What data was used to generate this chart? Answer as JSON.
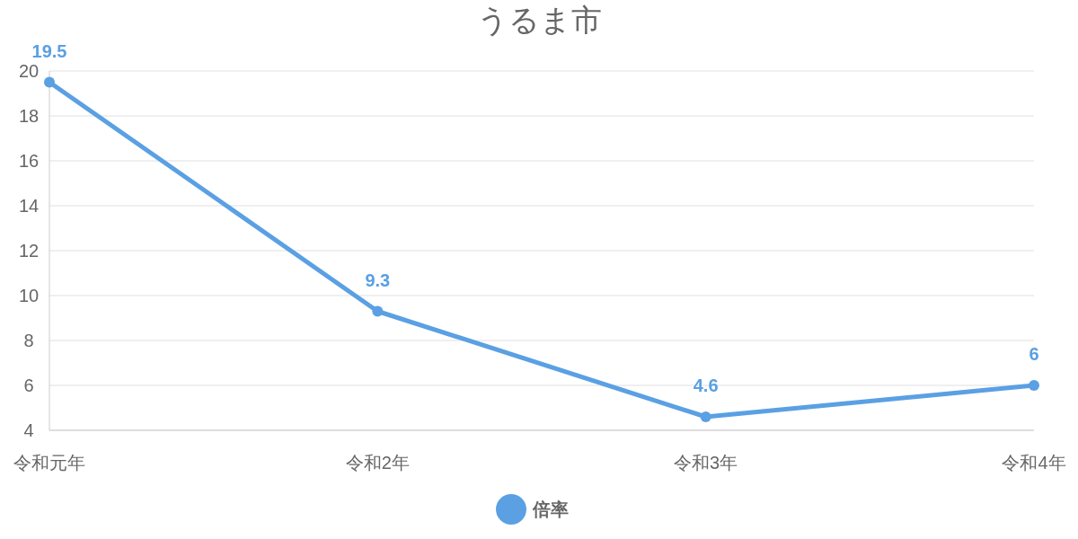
{
  "chart_data": {
    "type": "line",
    "title": "うるま市",
    "categories": [
      "令和元年",
      "令和2年",
      "令和3年",
      "令和4年"
    ],
    "series": [
      {
        "name": "倍率",
        "color": "#5aa0e3",
        "values": [
          19.5,
          9.3,
          4.6,
          6
        ]
      }
    ],
    "ylim": [
      4,
      20
    ],
    "yticks": [
      4,
      6,
      8,
      10,
      12,
      14,
      16,
      18,
      20
    ],
    "grid": "y",
    "legend": "bottom",
    "marker": "circle",
    "line_style": "solid",
    "data_labels": true
  }
}
